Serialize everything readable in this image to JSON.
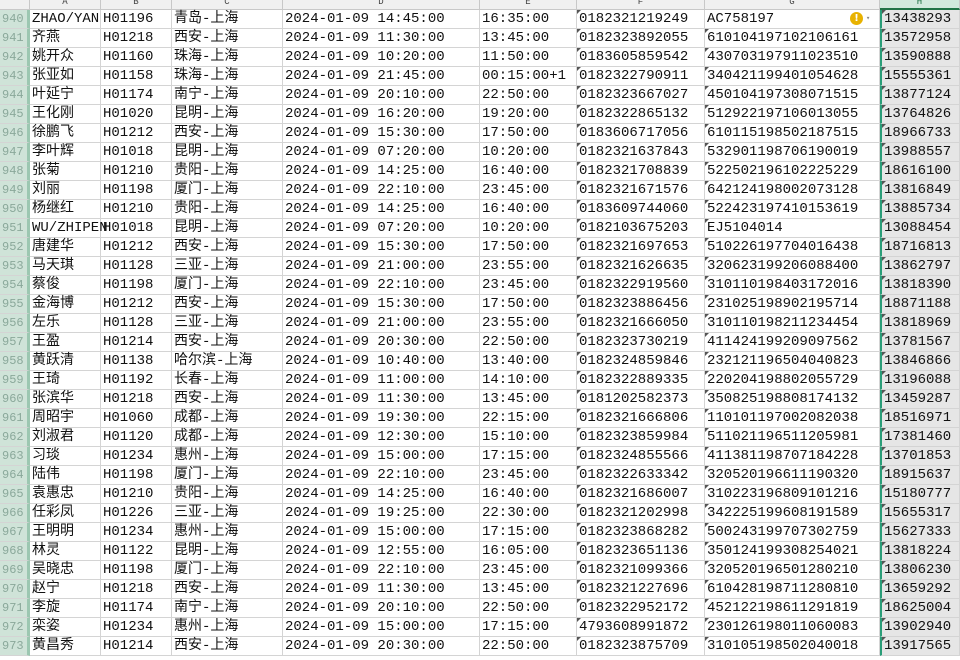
{
  "columns": [
    "A",
    "B",
    "C",
    "D",
    "E",
    "F",
    "G",
    "H"
  ],
  "rows": [
    [
      "940",
      "ZHAO/YAN",
      "H01196",
      "青岛-上海",
      "2024-01-09 14:45:00",
      "16:35:00",
      "0182321219249",
      "AC758197",
      "13438293"
    ],
    [
      "941",
      "齐燕",
      "H01218",
      "西安-上海",
      "2024-01-09 11:30:00",
      "13:45:00",
      "0182323892055",
      "610104197102106161",
      "13572958"
    ],
    [
      "942",
      "姚开众",
      "H01160",
      "珠海-上海",
      "2024-01-09 10:20:00",
      "11:50:00",
      "0183605859542",
      "430703197911023510",
      "13590888"
    ],
    [
      "943",
      "张亚如",
      "H01158",
      "珠海-上海",
      "2024-01-09 21:45:00",
      "00:15:00+1",
      "0182322790911",
      "340421199401054628",
      "15555361"
    ],
    [
      "944",
      "叶延宁",
      "H01174",
      "南宁-上海",
      "2024-01-09 20:10:00",
      "22:50:00",
      "0182323667027",
      "450104197308071515",
      "13877124"
    ],
    [
      "945",
      "王化刚",
      "H01020",
      "昆明-上海",
      "2024-01-09 16:20:00",
      "19:20:00",
      "0182322865132",
      "512922197106013055",
      "13764826"
    ],
    [
      "946",
      "徐鹏飞",
      "H01212",
      "西安-上海",
      "2024-01-09 15:30:00",
      "17:50:00",
      "0183606717056",
      "610115198502187515",
      "18966733"
    ],
    [
      "947",
      "李叶辉",
      "H01018",
      "昆明-上海",
      "2024-01-09 07:20:00",
      "10:20:00",
      "0182321637843",
      "532901198706190019",
      "13988557"
    ],
    [
      "948",
      "张菊",
      "H01210",
      "贵阳-上海",
      "2024-01-09 14:25:00",
      "16:40:00",
      "0182321708839",
      "522502196102225229",
      "18616100"
    ],
    [
      "949",
      "刘丽",
      "H01198",
      "厦门-上海",
      "2024-01-09 22:10:00",
      "23:45:00",
      "0182321671576",
      "642124198002073128",
      "13816849"
    ],
    [
      "950",
      "杨继红",
      "H01210",
      "贵阳-上海",
      "2024-01-09 14:25:00",
      "16:40:00",
      "0183609744060",
      "522423197410153619",
      "13885734"
    ],
    [
      "951",
      "WU/ZHIPEN",
      "H01018",
      "昆明-上海",
      "2024-01-09 07:20:00",
      "10:20:00",
      "0182103675203",
      "EJ5104014",
      "13088454"
    ],
    [
      "952",
      "唐建华",
      "H01212",
      "西安-上海",
      "2024-01-09 15:30:00",
      "17:50:00",
      "0182321697653",
      "510226197704016438",
      "18716813"
    ],
    [
      "953",
      "马天琪",
      "H01128",
      "三亚-上海",
      "2024-01-09 21:00:00",
      "23:55:00",
      "0182321626635",
      "320623199206088400",
      "13862797"
    ],
    [
      "954",
      "蔡俊",
      "H01198",
      "厦门-上海",
      "2024-01-09 22:10:00",
      "23:45:00",
      "0182322919560",
      "310110198403172016",
      "13818390"
    ],
    [
      "955",
      "金海博",
      "H01212",
      "西安-上海",
      "2024-01-09 15:30:00",
      "17:50:00",
      "0182323886456",
      "231025198902195714",
      "18871188"
    ],
    [
      "956",
      "左乐",
      "H01128",
      "三亚-上海",
      "2024-01-09 21:00:00",
      "23:55:00",
      "0182321666050",
      "310110198211234454",
      "13818969"
    ],
    [
      "957",
      "王盈",
      "H01214",
      "西安-上海",
      "2024-01-09 20:30:00",
      "22:50:00",
      "0182323730219",
      "411424199209097562",
      "13781567"
    ],
    [
      "958",
      "黄跃清",
      "H01138",
      "哈尔滨-上海",
      "2024-01-09 10:40:00",
      "13:40:00",
      "0182324859846",
      "232121196504040823",
      "13846866"
    ],
    [
      "959",
      "王琦",
      "H01192",
      "长春-上海",
      "2024-01-09 11:00:00",
      "14:10:00",
      "0182322889335",
      "220204198802055729",
      "13196088"
    ],
    [
      "960",
      "张滨华",
      "H01218",
      "西安-上海",
      "2024-01-09 11:30:00",
      "13:45:00",
      "0181202582373",
      "350825198808174132",
      "13459287"
    ],
    [
      "961",
      "周昭宇",
      "H01060",
      "成都-上海",
      "2024-01-09 19:30:00",
      "22:15:00",
      "0182321666806",
      "110101197002082038",
      "18516971"
    ],
    [
      "962",
      "刘淑君",
      "H01120",
      "成都-上海",
      "2024-01-09 12:30:00",
      "15:10:00",
      "0182323859984",
      "511021196511205981",
      "17381460"
    ],
    [
      "963",
      "习琰",
      "H01234",
      "惠州-上海",
      "2024-01-09 15:00:00",
      "17:15:00",
      "0182324855566",
      "411381198707184228",
      "13701853"
    ],
    [
      "964",
      "陆伟",
      "H01198",
      "厦门-上海",
      "2024-01-09 22:10:00",
      "23:45:00",
      "0182322633342",
      "320520196611190320",
      "18915637"
    ],
    [
      "965",
      "袁惠忠",
      "H01210",
      "贵阳-上海",
      "2024-01-09 14:25:00",
      "16:40:00",
      "0182321686007",
      "310223196809101216",
      "15180777"
    ],
    [
      "966",
      "任彩凤",
      "H01226",
      "三亚-上海",
      "2024-01-09 19:25:00",
      "22:30:00",
      "0182321202998",
      "342225199608191589",
      "15655317"
    ],
    [
      "967",
      "王明明",
      "H01234",
      "惠州-上海",
      "2024-01-09 15:00:00",
      "17:15:00",
      "0182323868282",
      "500243199707302759",
      "15627333"
    ],
    [
      "968",
      "林灵",
      "H01122",
      "昆明-上海",
      "2024-01-09 12:55:00",
      "16:05:00",
      "0182323651136",
      "350124199308254021",
      "13818224"
    ],
    [
      "969",
      "吴晓忠",
      "H01198",
      "厦门-上海",
      "2024-01-09 22:10:00",
      "23:45:00",
      "0182321099366",
      "320520196501280210",
      "13806230"
    ],
    [
      "970",
      "赵宁",
      "H01218",
      "西安-上海",
      "2024-01-09 11:30:00",
      "13:45:00",
      "0182321227696",
      "610428198711280810",
      "13659292"
    ],
    [
      "971",
      "李旋",
      "H01174",
      "南宁-上海",
      "2024-01-09 20:10:00",
      "22:50:00",
      "0182322952172",
      "452122198611291819",
      "18625004"
    ],
    [
      "972",
      "栾姿",
      "H01234",
      "惠州-上海",
      "2024-01-09 15:00:00",
      "17:15:00",
      "4793608991872",
      "230126198011060083",
      "13902940"
    ],
    [
      "973",
      "黄昌秀",
      "H01214",
      "西安-上海",
      "2024-01-09 20:30:00",
      "22:50:00",
      "0182323875709",
      "310105198502040018",
      "13917565"
    ]
  ],
  "selected_column": "H",
  "accent": "#217346",
  "warning_icon": "exclamation-circle"
}
